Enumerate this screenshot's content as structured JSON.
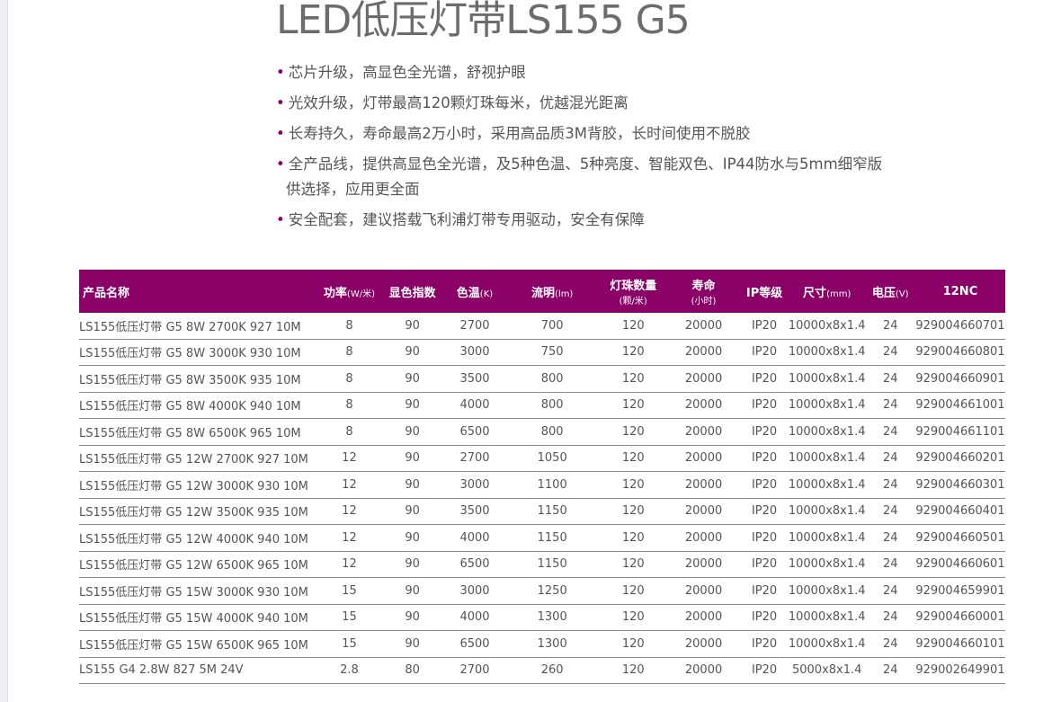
{
  "title": "LED低压灯带LS155 G5",
  "bullets": [
    "芯片升级，高显色全光谱，舒视护眼",
    "光效升级，灯带最高120颗灯珠每米，优越混光距离",
    "长寿持久，寿命最高2万小时，采用高品质3M背胶，长时间使用不脱胶",
    "全产品线，提供高显色全光谱，及5种色温、5种亮度、智能双色、IP44防水与5mm细窄版",
    "安全配套，建议搭载飞利浦灯带专用驱动，安全有保障"
  ],
  "bullet4_cont": "供选择，应用更全面",
  "accent": "#8a0066",
  "headers": [
    {
      "main": "产品名称",
      "unit": ""
    },
    {
      "main": "功率",
      "unit": "(W/米)"
    },
    {
      "main": "显色指数",
      "unit": ""
    },
    {
      "main": "色温",
      "unit": "(K)"
    },
    {
      "main": "流明",
      "unit": "(lm)"
    },
    {
      "main": "灯珠数量",
      "unit": "(颗/米)"
    },
    {
      "main": "寿命",
      "unit": "(小时)"
    },
    {
      "main": "IP等级",
      "unit": ""
    },
    {
      "main": "尺寸",
      "unit": "(mm)"
    },
    {
      "main": "电压",
      "unit": "(V)"
    },
    {
      "main": "12NC",
      "unit": ""
    }
  ],
  "rows": [
    [
      "LS155低压灯带 G5 8W 2700K 927 10M",
      "8",
      "90",
      "2700",
      "700",
      "120",
      "20000",
      "IP20",
      "10000x8x1.4",
      "24",
      "929004660701"
    ],
    [
      "LS155低压灯带 G5 8W 3000K 930 10M",
      "8",
      "90",
      "3000",
      "750",
      "120",
      "20000",
      "IP20",
      "10000x8x1.4",
      "24",
      "929004660801"
    ],
    [
      "LS155低压灯带 G5 8W 3500K 935 10M",
      "8",
      "90",
      "3500",
      "800",
      "120",
      "20000",
      "IP20",
      "10000x8x1.4",
      "24",
      "929004660901"
    ],
    [
      "LS155低压灯带 G5 8W 4000K 940 10M",
      "8",
      "90",
      "4000",
      "800",
      "120",
      "20000",
      "IP20",
      "10000x8x1.4",
      "24",
      "929004661001"
    ],
    [
      "LS155低压灯带 G5 8W 6500K 965 10M",
      "8",
      "90",
      "6500",
      "800",
      "120",
      "20000",
      "IP20",
      "10000x8x1.4",
      "24",
      "929004661101"
    ],
    [
      "LS155低压灯带 G5 12W 2700K 927 10M",
      "12",
      "90",
      "2700",
      "1050",
      "120",
      "20000",
      "IP20",
      "10000x8x1.4",
      "24",
      "929004660201"
    ],
    [
      "LS155低压灯带 G5 12W 3000K 930 10M",
      "12",
      "90",
      "3000",
      "1100",
      "120",
      "20000",
      "IP20",
      "10000x8x1.4",
      "24",
      "929004660301"
    ],
    [
      "LS155低压灯带 G5 12W 3500K 935 10M",
      "12",
      "90",
      "3500",
      "1150",
      "120",
      "20000",
      "IP20",
      "10000x8x1.4",
      "24",
      "929004660401"
    ],
    [
      "LS155低压灯带 G5 12W 4000K 940 10M",
      "12",
      "90",
      "4000",
      "1150",
      "120",
      "20000",
      "IP20",
      "10000x8x1.4",
      "24",
      "929004660501"
    ],
    [
      "LS155低压灯带 G5 12W 6500K 965 10M",
      "12",
      "90",
      "6500",
      "1150",
      "120",
      "20000",
      "IP20",
      "10000x8x1.4",
      "24",
      "929004660601"
    ],
    [
      "LS155低压灯带 G5 15W 3000K 930 10M",
      "15",
      "90",
      "3000",
      "1250",
      "120",
      "20000",
      "IP20",
      "10000x8x1.4",
      "24",
      "929004659901"
    ],
    [
      "LS155低压灯带 G5 15W 4000K 940 10M",
      "15",
      "90",
      "4000",
      "1300",
      "120",
      "20000",
      "IP20",
      "10000x8x1.4",
      "24",
      "929004660001"
    ],
    [
      "LS155低压灯带 G5 15W 6500K 965 10M",
      "15",
      "90",
      "6500",
      "1300",
      "120",
      "20000",
      "IP20",
      "10000x8x1.4",
      "24",
      "929004660101"
    ],
    [
      "LS155 G4 2.8W 827 5M 24V",
      "2.8",
      "80",
      "2700",
      "260",
      "120",
      "20000",
      "IP20",
      "5000x8x1.4",
      "24",
      "929002649901"
    ]
  ]
}
